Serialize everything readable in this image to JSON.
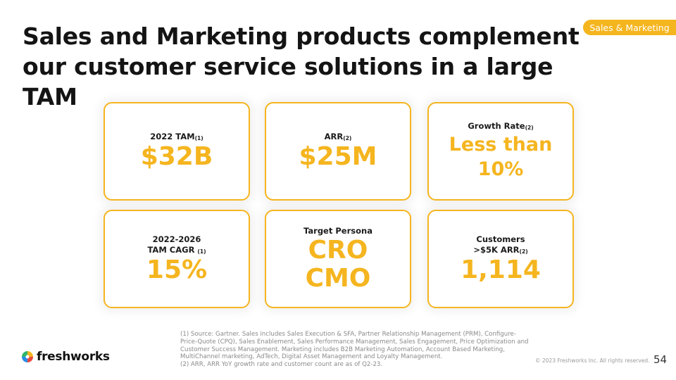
{
  "tag": "Sales & Marketing",
  "title": {
    "line1": "Sales and Marketing products complement",
    "line2": "our customer service solutions in a large TAM"
  },
  "cards": [
    {
      "label": "2022 TAM",
      "sup": "(1)",
      "value": "$32B"
    },
    {
      "label": "ARR",
      "sup": "(2)",
      "value": "$25M"
    },
    {
      "label": "Growth Rate",
      "sup": "(2)",
      "value_line1": "Less than",
      "value_line2": "10%"
    },
    {
      "label_line1": "2022-2026",
      "label_line2": "TAM CAGR ",
      "sup": "(1)",
      "value": "15%"
    },
    {
      "label": "Target Persona",
      "value_line1": "CRO",
      "value_line2": "CMO"
    },
    {
      "label_line1": "Customers",
      "label_line2": ">$5K ARR",
      "sup": "(2)",
      "value": "1,114"
    }
  ],
  "footnotes": {
    "note1": "(1) Source: Gartner. Sales includes Sales Execution & SFA, Partner Relationship Management (PRM), Configure-Price-Quote (CPQ), Sales Enablement, Sales Performance Management, Sales Engagement, Price Optimization and Customer Success Management. Marketing includes B2B Marketing Automation, Account Based Marketing, MultiChannel marketing, AdTech, Digital Asset Management and Loyalty Management.",
    "note2": "(2) ARR, ARR YoY growth rate and customer count are as of Q2-23."
  },
  "logo_text": "freshworks",
  "copyright": "© 2023 Freshworks Inc. All rights reserved.",
  "page_number": "54",
  "colors": {
    "accent": "#f5b51f",
    "text": "#141414",
    "muted": "#8a8a8a"
  }
}
